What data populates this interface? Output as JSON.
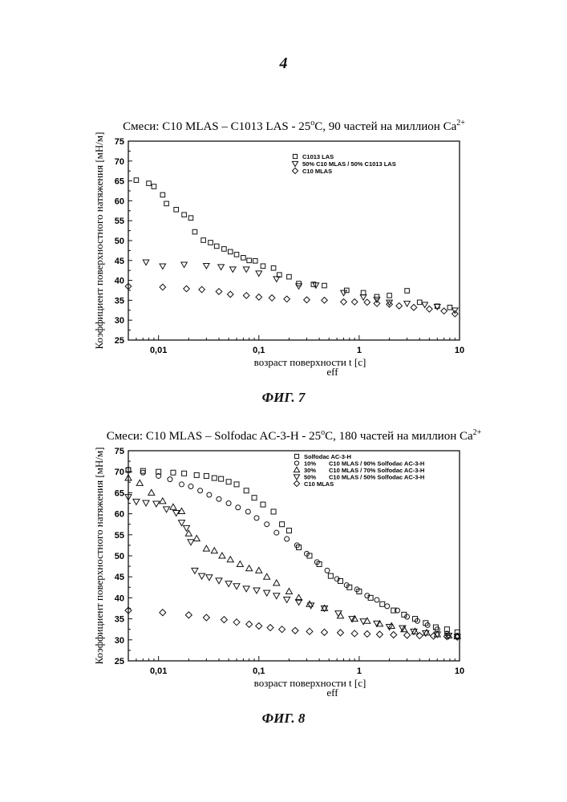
{
  "page": {
    "number": "4"
  },
  "chart_data": [
    {
      "type": "scatter",
      "xscale": "log",
      "figure_caption": "ФИГ. 7",
      "title": "Смеси: C10 MLAS – C1013 LAS - 25°C, 90 частей на миллион Ca2+",
      "title_main": "Смеси: C10 MLAS – C1013 LAS - 25",
      "title_deg": "o",
      "title_rest": "C, 90 частей на миллион Ca",
      "title_sup": "2+",
      "xlabel": "возраст поверхности t",
      "xlabel_unit": "[c]",
      "xlabel_sub": "eff",
      "ylabel": "Коэффициент поверхностного натяжения [мН/м]",
      "xlim": [
        0.005,
        10
      ],
      "ylim": [
        25,
        75
      ],
      "xticks": [
        {
          "v": 0.01,
          "label": "0,01"
        },
        {
          "v": 0.1,
          "label": "0,1"
        },
        {
          "v": 1,
          "label": "1"
        },
        {
          "v": 10,
          "label": "10"
        }
      ],
      "yticks": [
        25,
        30,
        35,
        40,
        45,
        50,
        55,
        60,
        65,
        70,
        75
      ],
      "legend_position": "top-right",
      "series": [
        {
          "name": "C1013 LAS",
          "marker": "square",
          "x": [
            0.006,
            0.008,
            0.009,
            0.011,
            0.012,
            0.015,
            0.018,
            0.021,
            0.023,
            0.028,
            0.033,
            0.038,
            0.045,
            0.052,
            0.06,
            0.07,
            0.08,
            0.092,
            0.11,
            0.14,
            0.16,
            0.2,
            0.25,
            0.35,
            0.45,
            0.75,
            1.1,
            1.5,
            2.0,
            3.0,
            4.0,
            6.0,
            8.0
          ],
          "y": [
            65.2,
            64.4,
            63.6,
            61.5,
            59.3,
            57.8,
            56.5,
            55.7,
            52.2,
            50.1,
            49.5,
            48.6,
            47.9,
            47.2,
            46.5,
            45.7,
            45.0,
            44.9,
            43.6,
            43.1,
            41.4,
            40.9,
            39.2,
            39.0,
            38.7,
            37.5,
            36.9,
            35.9,
            36.2,
            37.4,
            34.5,
            33.5,
            33.2
          ]
        },
        {
          "name": "50% C10 MLAS / 50% C1013 LAS",
          "marker": "triangle-down",
          "x": [
            0.0075,
            0.011,
            0.018,
            0.03,
            0.042,
            0.055,
            0.075,
            0.1,
            0.15,
            0.25,
            0.37,
            0.7,
            1.1,
            1.5,
            2.0,
            3.0,
            4.5,
            6.0,
            9.0
          ],
          "y": [
            44.6,
            43.6,
            44.0,
            43.7,
            43.4,
            42.8,
            42.8,
            41.8,
            40.4,
            38.6,
            38.8,
            36.9,
            35.8,
            35.2,
            34.5,
            34.2,
            33.9,
            33.4,
            32.5
          ]
        },
        {
          "name": "C10 MLAS",
          "marker": "diamond",
          "x": [
            0.005,
            0.011,
            0.019,
            0.027,
            0.04,
            0.052,
            0.075,
            0.1,
            0.135,
            0.19,
            0.3,
            0.45,
            0.7,
            0.9,
            1.2,
            1.5,
            2.0,
            2.5,
            3.5,
            5.0,
            7.0,
            9.0
          ],
          "y": [
            38.5,
            38.3,
            37.9,
            37.7,
            37.2,
            36.5,
            36.2,
            35.8,
            35.6,
            35.3,
            35.1,
            35.0,
            34.6,
            34.6,
            34.5,
            34.2,
            34.0,
            33.6,
            33.2,
            32.8,
            32.3,
            31.6
          ]
        }
      ]
    },
    {
      "type": "scatter",
      "xscale": "log",
      "figure_caption": "ФИГ. 8",
      "title": "Смеси: C10 MLAS – Solfodac AC-3-H - 25°C, 180 частей на миллион Ca2+",
      "title_main": "Смеси: C10 MLAS – Solfodac AC-3-H - 25",
      "title_deg": "o",
      "title_rest": "C, 180 частей на миллион Ca",
      "title_sup": "2+",
      "xlabel": "возраст поверхности t",
      "xlabel_unit": "[c]",
      "xlabel_sub": "eff",
      "ylabel": "Коэффициент поверхностного натяжения [мН/м]",
      "xlim": [
        0.005,
        10
      ],
      "ylim": [
        25,
        75
      ],
      "xticks": [
        {
          "v": 0.01,
          "label": "0,01"
        },
        {
          "v": 0.1,
          "label": "0,1"
        },
        {
          "v": 1,
          "label": "1"
        },
        {
          "v": 10,
          "label": "10"
        }
      ],
      "yticks": [
        25,
        30,
        35,
        40,
        45,
        50,
        55,
        60,
        65,
        70,
        75
      ],
      "legend_position": "top-right",
      "legend_labels": [
        {
          "pct": "",
          "text": "Solfodac AC-3-H"
        },
        {
          "pct": "10%",
          "text": "C10 MLAS / 90% Solfodac AC-3-H"
        },
        {
          "pct": "30%",
          "text": "C10 MLAS / 70% Solfodac AC-3-H"
        },
        {
          "pct": "50%",
          "text": "C10 MLAS / 50% Solfodac AC-3-H"
        },
        {
          "pct": "",
          "text": "C10 MLAS"
        }
      ],
      "series": [
        {
          "name": "Solfodac AC-3-H",
          "marker": "square",
          "x": [
            0.005,
            0.007,
            0.01,
            0.014,
            0.018,
            0.024,
            0.03,
            0.036,
            0.042,
            0.05,
            0.06,
            0.075,
            0.09,
            0.11,
            0.14,
            0.17,
            0.2,
            0.25,
            0.32,
            0.4,
            0.52,
            0.65,
            0.8,
            1.0,
            1.3,
            1.7,
            2.2,
            2.8,
            3.6,
            4.6,
            5.8,
            7.5,
            9.5
          ],
          "y": [
            70.4,
            70.2,
            70.0,
            69.8,
            69.6,
            69.2,
            69.0,
            68.5,
            68.3,
            67.6,
            67.0,
            65.5,
            63.8,
            62.2,
            60.5,
            57.5,
            56.0,
            52.0,
            50.0,
            48.0,
            45.2,
            44.0,
            42.5,
            41.5,
            40.0,
            38.5,
            37.0,
            36.0,
            35.0,
            34.0,
            33.0,
            32.5,
            31.8
          ]
        },
        {
          "name": "10% C10 MLAS / 90% Solfodac AC-3-H",
          "marker": "circle",
          "x": [
            0.005,
            0.007,
            0.01,
            0.013,
            0.017,
            0.021,
            0.026,
            0.032,
            0.04,
            0.05,
            0.062,
            0.078,
            0.095,
            0.12,
            0.15,
            0.19,
            0.24,
            0.3,
            0.38,
            0.48,
            0.6,
            0.75,
            0.95,
            1.2,
            1.5,
            1.9,
            2.4,
            3.0,
            3.8,
            4.8,
            6.0,
            7.5,
            9.5
          ],
          "y": [
            70.5,
            69.8,
            69.0,
            68.2,
            67.0,
            66.5,
            65.5,
            64.5,
            63.5,
            62.5,
            61.5,
            60.5,
            59.0,
            57.5,
            55.5,
            54.0,
            52.5,
            50.5,
            48.5,
            46.5,
            44.5,
            43.0,
            42.0,
            40.5,
            39.5,
            38.0,
            37.0,
            35.5,
            34.5,
            33.5,
            32.5,
            31.5,
            31.0
          ]
        },
        {
          "name": "30% C10 MLAS / 70% Solfodac AC-3-H",
          "marker": "triangle-up",
          "x": [
            0.005,
            0.0065,
            0.0085,
            0.011,
            0.014,
            0.017,
            0.02,
            0.024,
            0.03,
            0.036,
            0.043,
            0.052,
            0.065,
            0.08,
            0.1,
            0.12,
            0.15,
            0.2,
            0.25,
            0.32,
            0.45,
            0.65,
            0.9,
            1.2,
            1.6,
            2.1,
            2.8,
            3.6,
            4.7,
            6.0,
            7.8,
            9.5
          ],
          "y": [
            68.5,
            67.3,
            65.0,
            63.0,
            61.6,
            60.6,
            55.3,
            54.1,
            51.7,
            51.2,
            50.0,
            49.1,
            48.0,
            47.0,
            46.5,
            45.0,
            43.5,
            41.5,
            40.0,
            38.5,
            37.5,
            35.7,
            35.0,
            34.5,
            33.8,
            33.3,
            32.5,
            32.0,
            31.7,
            31.3,
            31.0,
            30.8
          ]
        },
        {
          "name": "50% C10 MLAS / 50% Solfodac AC-3-H",
          "marker": "triangle-down",
          "x": [
            0.005,
            0.006,
            0.0075,
            0.0095,
            0.012,
            0.015,
            0.017,
            0.019,
            0.021,
            0.023,
            0.027,
            0.032,
            0.04,
            0.05,
            0.06,
            0.075,
            0.095,
            0.12,
            0.15,
            0.19,
            0.25,
            0.33,
            0.45,
            0.62,
            0.85,
            1.1,
            1.5,
            2.0,
            2.7,
            3.5,
            4.6,
            6.0,
            7.8,
            9.5
          ],
          "y": [
            64.0,
            62.9,
            62.6,
            62.4,
            61.1,
            60.2,
            57.9,
            56.6,
            53.3,
            46.5,
            45.2,
            44.9,
            44.1,
            43.4,
            42.8,
            42.2,
            41.8,
            41.2,
            40.5,
            39.6,
            39.0,
            38.2,
            37.5,
            36.3,
            35.0,
            34.4,
            33.9,
            33.1,
            32.8,
            32.0,
            31.6,
            31.3,
            31.0,
            30.7
          ]
        },
        {
          "name": "C10 MLAS",
          "marker": "diamond",
          "x": [
            0.005,
            0.011,
            0.02,
            0.03,
            0.045,
            0.06,
            0.08,
            0.1,
            0.13,
            0.17,
            0.23,
            0.32,
            0.45,
            0.65,
            0.9,
            1.2,
            1.6,
            2.2,
            3.0,
            4.0,
            5.5,
            7.5,
            9.5
          ],
          "y": [
            37.0,
            36.5,
            35.9,
            35.3,
            34.8,
            34.2,
            33.7,
            33.3,
            32.9,
            32.5,
            32.2,
            32.0,
            31.8,
            31.7,
            31.5,
            31.4,
            31.3,
            31.2,
            31.1,
            31.0,
            30.9,
            30.8,
            30.7
          ]
        }
      ]
    }
  ]
}
